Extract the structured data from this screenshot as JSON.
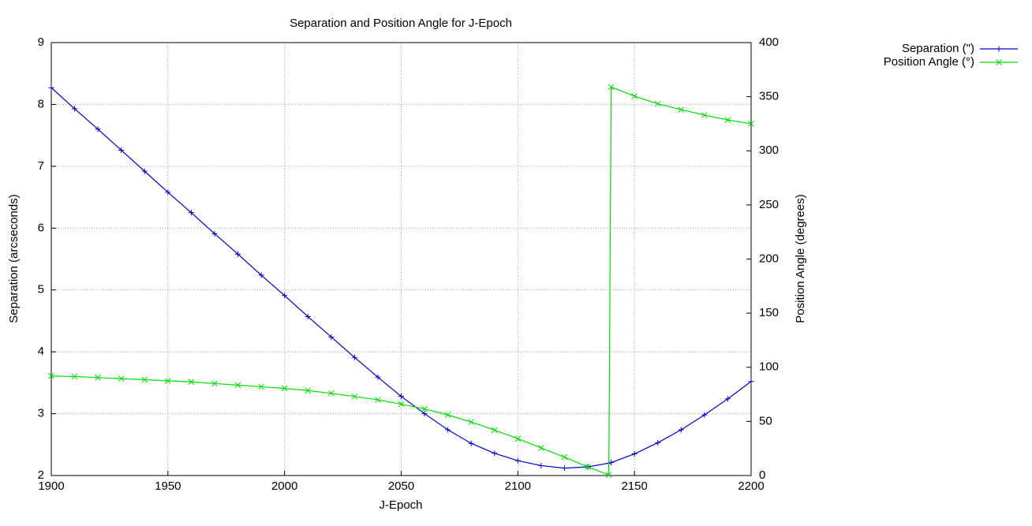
{
  "chart_data": {
    "type": "line",
    "title": "Separation and Position Angle for J-Epoch",
    "xlabel": "J-Epoch",
    "ylabel": "Separation (arcseconds)",
    "y2label": "Position Angle (degrees)",
    "x": [
      1900,
      1910,
      1920,
      1930,
      1940,
      1950,
      1960,
      1970,
      1980,
      1990,
      2000,
      2010,
      2020,
      2030,
      2040,
      2050,
      2060,
      2070,
      2080,
      2090,
      2100,
      2110,
      2120,
      2130,
      2139,
      2140,
      2150,
      2160,
      2170,
      2180,
      2190,
      2200
    ],
    "series": [
      {
        "name": "Separation (\")",
        "color": "#0000cc",
        "marker": "+",
        "values": [
          8.27,
          7.93,
          7.6,
          7.26,
          6.92,
          6.58,
          6.25,
          5.91,
          5.58,
          5.24,
          4.91,
          4.57,
          4.24,
          3.91,
          3.59,
          3.28,
          3.0,
          2.74,
          2.52,
          2.36,
          2.24,
          2.16,
          2.12,
          2.14,
          2.2,
          2.21,
          2.35,
          2.53,
          2.74,
          2.98,
          3.24,
          3.52
        ]
      },
      {
        "name": "Position Angle (°)",
        "color": "#00dd00",
        "marker": "x",
        "axis": "y2",
        "values": [
          92,
          91.5,
          90.5,
          89.5,
          88.5,
          87.5,
          86.5,
          85,
          83.5,
          82,
          80.5,
          78.5,
          76,
          73,
          70,
          66,
          61.5,
          56,
          49.5,
          42,
          34,
          25.5,
          17,
          8,
          0.5,
          359,
          350.5,
          343.5,
          338,
          333,
          328.5,
          325
        ]
      }
    ],
    "xlim": [
      1900,
      2200
    ],
    "xticks": [
      1900,
      1950,
      2000,
      2050,
      2100,
      2150,
      2200
    ],
    "ylim": [
      2,
      9
    ],
    "yticks": [
      2,
      3,
      4,
      5,
      6,
      7,
      8,
      9
    ],
    "y2lim": [
      0,
      400
    ],
    "y2ticks": [
      0,
      50,
      100,
      150,
      200,
      250,
      300,
      350,
      400
    ],
    "grid": true,
    "legend": "top-right"
  }
}
